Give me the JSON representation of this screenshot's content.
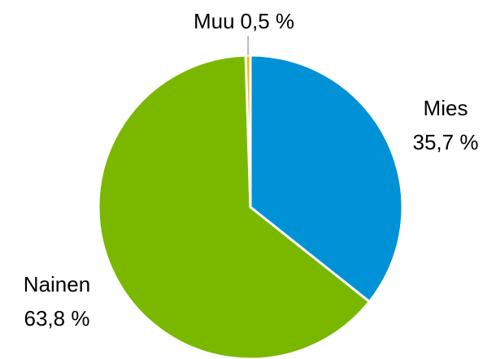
{
  "chart_data": {
    "type": "pie",
    "categories": [
      "Mies",
      "Nainen",
      "Muu"
    ],
    "values": [
      35.7,
      63.8,
      0.5
    ],
    "value_labels": [
      "35,7 %",
      "63,8 %",
      "0,5 %"
    ],
    "colors": [
      "#0091d6",
      "#7ab800",
      "#f2b800"
    ]
  }
}
